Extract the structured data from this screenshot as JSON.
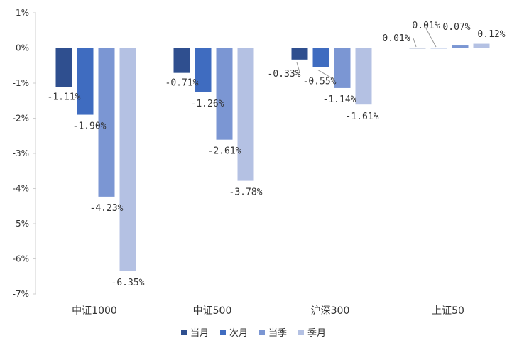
{
  "chart_data": {
    "type": "bar",
    "categories": [
      "中证1000",
      "中证500",
      "沪深300",
      "上证50"
    ],
    "series": [
      {
        "name": "当月",
        "color": "#2F4F8F",
        "values": [
          -1.11,
          -0.71,
          -0.33,
          0.01
        ]
      },
      {
        "name": "次月",
        "color": "#3F6CC0",
        "values": [
          -1.9,
          -1.26,
          -0.55,
          0.01
        ]
      },
      {
        "name": "当季",
        "color": "#7B96D3",
        "values": [
          -4.23,
          -2.61,
          -1.14,
          0.07
        ]
      },
      {
        "name": "季月",
        "color": "#B4C1E3",
        "values": [
          -6.35,
          -3.78,
          -1.61,
          0.12
        ]
      }
    ],
    "data_labels": [
      [
        "-1.11%",
        "-0.71%",
        "-0.33%",
        "0.01%"
      ],
      [
        "-1.90%",
        "-1.26%",
        "-0.55%",
        "0.01%"
      ],
      [
        "-4.23%",
        "-2.61%",
        "-1.14%",
        "0.07%"
      ],
      [
        "-6.35%",
        "-3.78%",
        "-1.61%",
        "0.12%"
      ]
    ],
    "ylim": [
      -7,
      1
    ],
    "y_ticks": [
      1,
      0,
      -1,
      -2,
      -3,
      -4,
      -5,
      -6,
      -7
    ],
    "y_tick_labels": [
      "1%",
      "0%",
      "-1%",
      "-2%",
      "-3%",
      "-4%",
      "-5%",
      "-6%",
      "-7%"
    ],
    "title": "",
    "xlabel": "",
    "ylabel": "",
    "grid": false,
    "legend_position": "bottom-center"
  }
}
